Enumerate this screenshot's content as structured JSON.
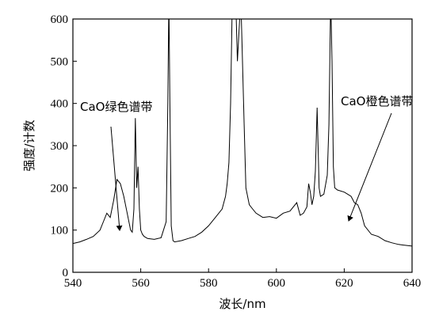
{
  "chart_data": {
    "type": "line",
    "title": "",
    "xlabel": "波长/nm",
    "ylabel": "强度/计数",
    "xlim": [
      540,
      640
    ],
    "ylim": [
      0,
      600
    ],
    "x_ticks": [
      540,
      560,
      580,
      600,
      620,
      640
    ],
    "y_ticks": [
      0,
      100,
      200,
      300,
      400,
      500,
      600
    ],
    "grid": false,
    "legend": "none",
    "line_color": "#000000",
    "series": [
      {
        "x": [
          540,
          542,
          544,
          546,
          548,
          549,
          550,
          551,
          552,
          553,
          554,
          555,
          556,
          557,
          557.5,
          558,
          558.4,
          558.8,
          559.2,
          559.6,
          560,
          560.5,
          561,
          562,
          564,
          566,
          567.5,
          568,
          568.3,
          568.6,
          569,
          569.5,
          570,
          572,
          574,
          576,
          578,
          580,
          582,
          584,
          585,
          585.5,
          586,
          586.5,
          587,
          588,
          588.5,
          589.5,
          590.5,
          591,
          592,
          593,
          594,
          596,
          598,
          600,
          602,
          604,
          606,
          607,
          608,
          609,
          609.5,
          610,
          610.5,
          611,
          611.5,
          612,
          612.3,
          612.6,
          613,
          614,
          615,
          615.5,
          616,
          616.4,
          616.8,
          617.2,
          618,
          620,
          621,
          622,
          623,
          624,
          625,
          626,
          628,
          630,
          632,
          634,
          636,
          638,
          640
        ],
        "y": [
          68,
          72,
          78,
          85,
          100,
          120,
          140,
          130,
          170,
          220,
          210,
          180,
          140,
          100,
          95,
          150,
          365,
          200,
          250,
          150,
          100,
          90,
          85,
          80,
          78,
          82,
          120,
          400,
          650,
          400,
          110,
          75,
          72,
          75,
          80,
          85,
          95,
          110,
          130,
          150,
          180,
          210,
          260,
          400,
          650,
          650,
          500,
          650,
          350,
          200,
          160,
          150,
          140,
          130,
          132,
          128,
          140,
          145,
          165,
          135,
          140,
          155,
          210,
          190,
          160,
          180,
          240,
          390,
          300,
          200,
          180,
          185,
          230,
          350,
          650,
          500,
          250,
          200,
          195,
          190,
          185,
          180,
          165,
          160,
          140,
          110,
          90,
          85,
          75,
          70,
          66,
          64,
          62
        ]
      }
    ],
    "annotations": [
      {
        "text": "CaO绿色谱带",
        "x": 552.5,
        "y": 210
      },
      {
        "text": "CaO橙色谱带",
        "x": 621,
        "y": 190
      }
    ]
  }
}
